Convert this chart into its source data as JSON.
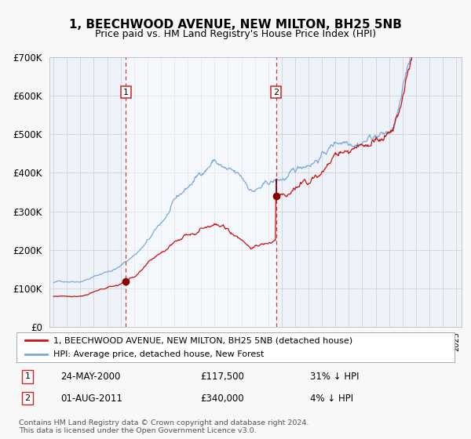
{
  "title": "1, BEECHWOOD AVENUE, NEW MILTON, BH25 5NB",
  "subtitle": "Price paid vs. HM Land Registry's House Price Index (HPI)",
  "background_color": "#f8f8f8",
  "plot_bg_color": "#eef3fa",
  "grid_color": "#ccccdd",
  "hpi_color": "#7aaadd",
  "price_color": "#cc1111",
  "marker_color": "#880000",
  "sale1_date_num": 2000.39,
  "sale1_price": 117500,
  "sale1_label": "24-MAY-2000",
  "sale1_hpi_pct": "31% ↓ HPI",
  "sale2_date_num": 2011.58,
  "sale2_price": 340000,
  "sale2_label": "01-AUG-2011",
  "sale2_hpi_pct": "4% ↓ HPI",
  "xmin": 1994.7,
  "xmax": 2025.4,
  "ymin": 0,
  "ymax": 700000,
  "legend_price": "1, BEECHWOOD AVENUE, NEW MILTON, BH25 5NB (detached house)",
  "legend_hpi": "HPI: Average price, detached house, New Forest",
  "footnote": "Contains HM Land Registry data © Crown copyright and database right 2024.\nThis data is licensed under the Open Government Licence v3.0."
}
